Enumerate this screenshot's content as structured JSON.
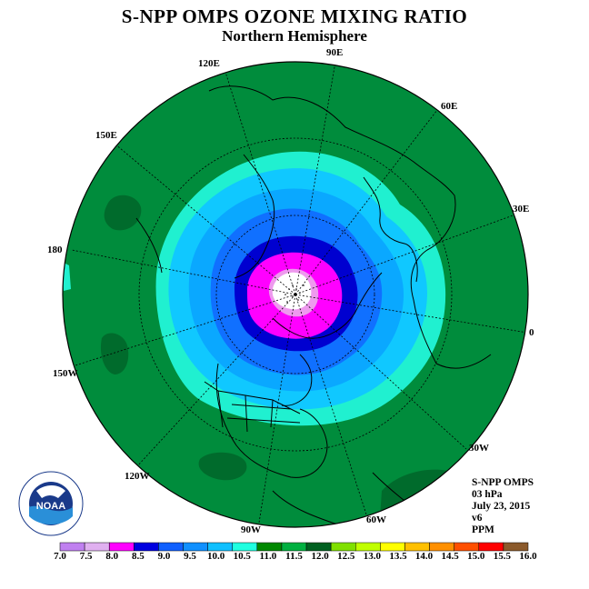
{
  "title": "S-NPP OMPS OZONE MIXING RATIO",
  "subtitle": "Northern Hemisphere",
  "longitude_labels": {
    "lon_90E": "90E",
    "lon_120E": "120E",
    "lon_60E": "60E",
    "lon_150E": "150E",
    "lon_30E": "30E",
    "lon_180": "180",
    "lon_0": "0",
    "lon_150W": "150W",
    "lon_30W": "30W",
    "lon_120W": "120W",
    "lon_60W": "60W",
    "lon_90W": "90W"
  },
  "metadata": {
    "instrument": "S-NPP OMPS",
    "level": "03 hPa",
    "date": "July 23, 2015",
    "version": "v6",
    "units": "PPM"
  },
  "logo_text": "NOAA",
  "colorbar": {
    "ticks": [
      "7.0",
      "7.5",
      "8.0",
      "8.5",
      "9.0",
      "9.5",
      "10.0",
      "10.5",
      "11.0",
      "11.5",
      "12.0",
      "12.5",
      "13.0",
      "13.5",
      "14.0",
      "14.5",
      "15.0",
      "15.5",
      "16.0"
    ],
    "colors": [
      "#c080f0",
      "#e0b0f0",
      "#ff00ff",
      "#0000e0",
      "#1060ff",
      "#1090ff",
      "#10c0ff",
      "#20ffe0",
      "#008800",
      "#00b040",
      "#006020",
      "#80e000",
      "#c0ff00",
      "#ffff00",
      "#ffc000",
      "#ff9000",
      "#ff5000",
      "#ff0000",
      "#8b5a2b"
    ]
  },
  "map_colors": {
    "background": "#008c3c",
    "dark_patch": "#006b2c",
    "band_11": "#20f0d0",
    "band_10_5": "#10c8ff",
    "band_10": "#0aa8ff",
    "band_9_5": "#1070ff",
    "band_9": "#0000d0",
    "band_8_5": "#ff00ff",
    "band_8": "#ee99ee",
    "band_7_5": "#ffffff"
  }
}
